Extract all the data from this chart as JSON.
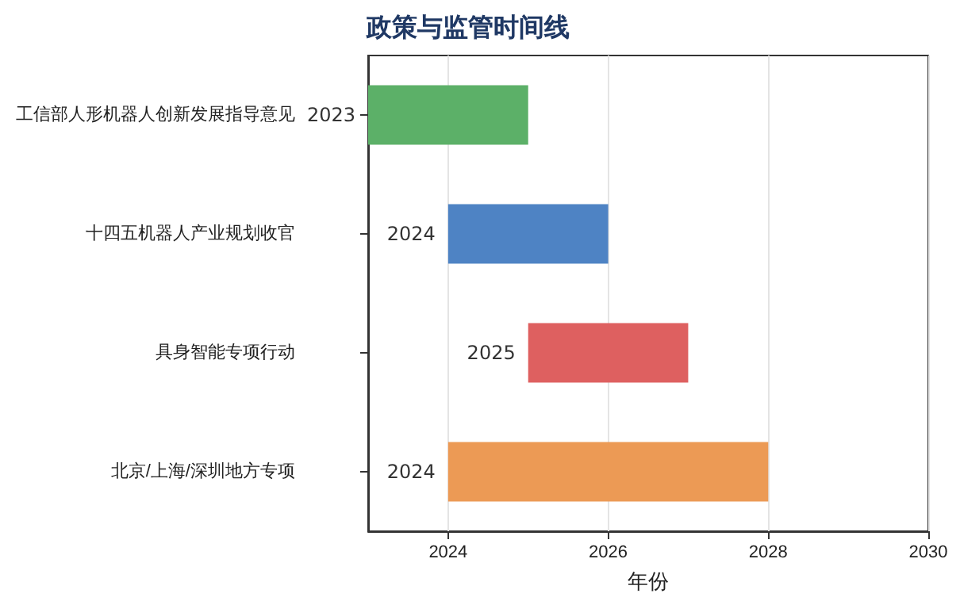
{
  "chart_data": {
    "type": "bar",
    "orientation": "horizontal",
    "title": "政策与监管时间线",
    "xlabel": "年份",
    "categories": [
      "工信部人形机器人创新发展指导意见",
      "十四五机器人产业规划收官",
      "具身智能专项行动",
      "北京/上海/深圳地方专项"
    ],
    "base": [
      2023,
      2024,
      2025,
      2024
    ],
    "values": [
      2,
      2,
      2,
      4
    ],
    "annotations": [
      {
        "text": "2023",
        "x": 2023,
        "y": "工信部人形机器人创新发展指导意见"
      },
      {
        "text": "2024",
        "x": 2024,
        "y": "十四五机器人产业规划收官"
      },
      {
        "text": "2025",
        "x": 2025,
        "y": "具身智能专项行动"
      },
      {
        "text": "2024",
        "x": 2024,
        "y": "北京/上海/深圳地方专项"
      }
    ],
    "colors": [
      "#5cb068",
      "#4e83c4",
      "#de6060",
      "#ec9a55"
    ],
    "xlim": [
      2023,
      2030
    ],
    "xticks": [
      2024,
      2026,
      2028,
      2030
    ],
    "grid": "x"
  }
}
